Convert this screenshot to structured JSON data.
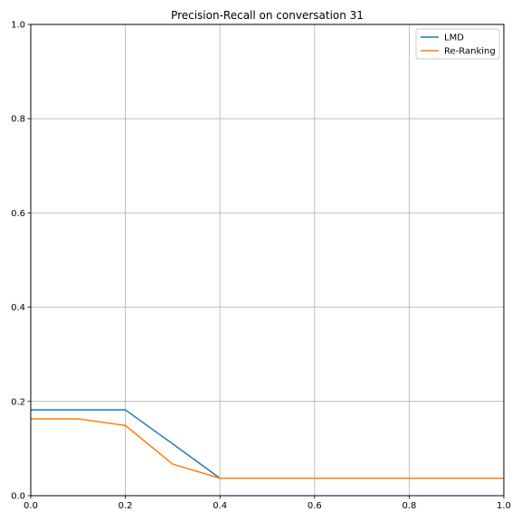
{
  "chart_data": {
    "type": "line",
    "title": "Precision-Recall on conversation 31",
    "xlabel": "",
    "ylabel": "",
    "xlim": [
      0,
      1
    ],
    "ylim": [
      0,
      1
    ],
    "x_ticks": [
      "0.0",
      "0.2",
      "0.4",
      "0.6",
      "0.8",
      "1.0"
    ],
    "y_ticks": [
      "0.0",
      "0.2",
      "0.4",
      "0.6",
      "0.8",
      "1.0"
    ],
    "grid": true,
    "legend_position": "top-right",
    "x": [
      0.0,
      0.1,
      0.2,
      0.3,
      0.4,
      0.5,
      0.6,
      0.7,
      0.8,
      0.9,
      1.0
    ],
    "series": [
      {
        "name": "LMD",
        "color": "#1f77b4",
        "values": [
          0.182,
          0.182,
          0.182,
          0.11,
          0.037,
          0.037,
          0.037,
          0.037,
          0.037,
          0.037,
          0.037
        ]
      },
      {
        "name": "Re-Ranking",
        "color": "#ff7f0e",
        "values": [
          0.163,
          0.163,
          0.149,
          0.067,
          0.037,
          0.037,
          0.037,
          0.037,
          0.037,
          0.037,
          0.037
        ]
      }
    ]
  }
}
